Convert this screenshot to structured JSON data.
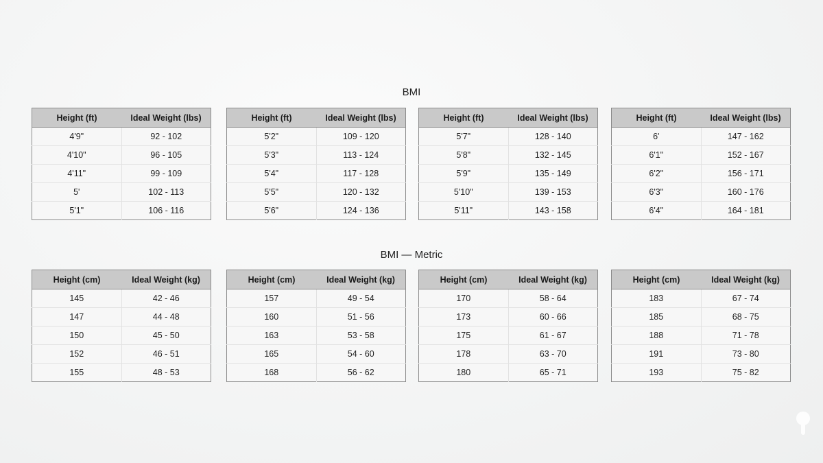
{
  "sections": [
    {
      "title": "BMI",
      "headers": [
        "Height (ft)",
        "Ideal Weight (lbs)"
      ],
      "tables": [
        [
          [
            "4'9\"",
            "92 - 102"
          ],
          [
            "4'10\"",
            "96 - 105"
          ],
          [
            "4'11\"",
            "99 - 109"
          ],
          [
            "5'",
            "102 - 113"
          ],
          [
            "5'1\"",
            "106 - 116"
          ]
        ],
        [
          [
            "5'2\"",
            "109 - 120"
          ],
          [
            "5'3\"",
            "113 - 124"
          ],
          [
            "5'4\"",
            "117 - 128"
          ],
          [
            "5'5\"",
            "120 - 132"
          ],
          [
            "5'6\"",
            "124 - 136"
          ]
        ],
        [
          [
            "5'7\"",
            "128 - 140"
          ],
          [
            "5'8\"",
            "132 - 145"
          ],
          [
            "5'9\"",
            "135 - 149"
          ],
          [
            "5'10\"",
            "139 - 153"
          ],
          [
            "5'11\"",
            "143 - 158"
          ]
        ],
        [
          [
            "6'",
            "147 - 162"
          ],
          [
            "6'1\"",
            "152 - 167"
          ],
          [
            "6'2\"",
            "156 - 171"
          ],
          [
            "6'3\"",
            "160 - 176"
          ],
          [
            "6'4\"",
            "164 - 181"
          ]
        ]
      ]
    },
    {
      "title": "BMI — Metric",
      "headers": [
        "Height (cm)",
        "Ideal Weight (kg)"
      ],
      "tables": [
        [
          [
            "145",
            "42 - 46"
          ],
          [
            "147",
            "44 - 48"
          ],
          [
            "150",
            "45 - 50"
          ],
          [
            "152",
            "46 - 51"
          ],
          [
            "155",
            "48 - 53"
          ]
        ],
        [
          [
            "157",
            "49 - 54"
          ],
          [
            "160",
            "51 - 56"
          ],
          [
            "163",
            "53 - 58"
          ],
          [
            "165",
            "54 - 60"
          ],
          [
            "168",
            "56 - 62"
          ]
        ],
        [
          [
            "170",
            "58 - 64"
          ],
          [
            "173",
            "60 - 66"
          ],
          [
            "175",
            "61 - 67"
          ],
          [
            "178",
            "63 - 70"
          ],
          [
            "180",
            "65 - 71"
          ]
        ],
        [
          [
            "183",
            "67 - 74"
          ],
          [
            "185",
            "68 - 75"
          ],
          [
            "188",
            "71 - 78"
          ],
          [
            "191",
            "73 - 80"
          ],
          [
            "193",
            "75 - 82"
          ]
        ]
      ]
    }
  ]
}
